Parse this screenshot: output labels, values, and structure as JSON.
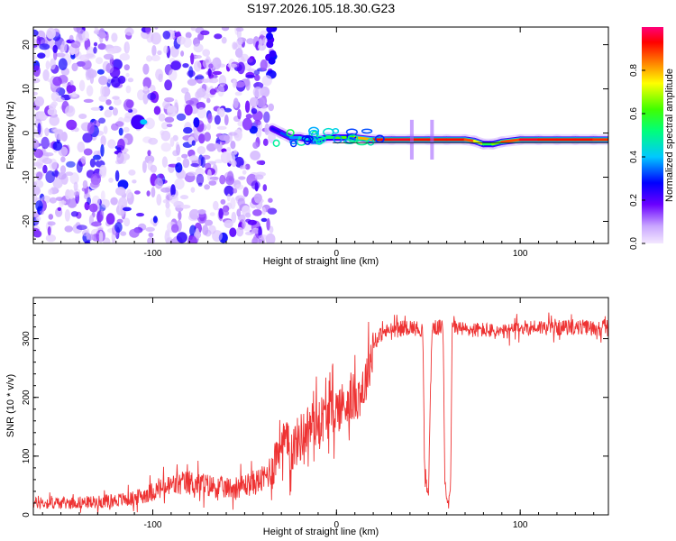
{
  "colors": {
    "spectrum_purple": "#8a2be2",
    "snr_line": "#ee3333",
    "frame": "#000000"
  },
  "chart_data": [
    {
      "type": "heatmap",
      "title": "S197.2026.105.18.30.G23",
      "xlabel": "Height of straight line (km)",
      "ylabel": "Frequency (Hz)",
      "xlim": [
        -165,
        148
      ],
      "ylim": [
        -25,
        24
      ],
      "xticks": [
        -100,
        0,
        100
      ],
      "xtick_labels": [
        "-100",
        "0",
        "100"
      ],
      "yticks": [
        -20,
        -10,
        0,
        10,
        20
      ],
      "ytick_labels": [
        "-20",
        "-10",
        "0",
        "10",
        "20"
      ],
      "noise_region_km": [
        -165,
        -35
      ],
      "signal_start_km": -33,
      "ridge": {
        "x": [
          -35,
          -30,
          -25,
          -20,
          -15,
          -10,
          -5,
          0,
          10,
          20,
          30,
          40,
          50,
          60,
          70,
          75,
          80,
          85,
          90,
          100,
          110,
          120,
          130,
          140,
          148
        ],
        "y": [
          1,
          0,
          -1,
          -1,
          -1.5,
          -1.5,
          -1,
          -1,
          -1,
          -1.5,
          -1.5,
          -1.5,
          -1.5,
          -1.5,
          -1.5,
          -1.8,
          -2.5,
          -2.5,
          -2,
          -1.5,
          -1.5,
          -1.5,
          -1.5,
          -1.5,
          -1.5
        ],
        "amplitude": [
          0.2,
          0.3,
          0.35,
          0.4,
          0.45,
          0.5,
          0.55,
          0.55,
          0.7,
          0.9,
          0.95,
          0.95,
          0.9,
          0.95,
          0.9,
          0.85,
          0.6,
          0.5,
          0.8,
          0.95,
          0.95,
          0.9,
          0.95,
          0.9,
          0.9
        ]
      },
      "colorbar": {
        "label": "Normalized spectral amplitude",
        "range": [
          0,
          1
        ],
        "ticks": [
          0.0,
          0.2,
          0.4,
          0.6,
          0.8
        ],
        "tick_labels": [
          "0.0",
          "0.2",
          "0.4",
          "0.6",
          "0.8"
        ]
      }
    },
    {
      "type": "line",
      "xlabel": "Height of straight line (km)",
      "ylabel": "SNR (10 * v/v)",
      "xlim": [
        -165,
        148
      ],
      "ylim": [
        0,
        370
      ],
      "xticks": [
        -100,
        0,
        100
      ],
      "xtick_labels": [
        "-100",
        "0",
        "100"
      ],
      "yticks": [
        0,
        100,
        200,
        300
      ],
      "ytick_labels": [
        "0",
        "100",
        "200",
        "300"
      ],
      "series": [
        {
          "name": "SNR",
          "x": [
            -165,
            -150,
            -130,
            -110,
            -100,
            -90,
            -80,
            -70,
            -60,
            -50,
            -40,
            -35,
            -30,
            -25,
            -20,
            -15,
            -10,
            -5,
            0,
            5,
            10,
            15,
            18,
            20,
            25,
            30,
            40,
            47,
            48,
            50,
            52,
            55,
            58,
            59,
            60,
            62,
            63,
            65,
            70,
            80,
            90,
            100,
            110,
            120,
            130,
            140,
            148
          ],
          "values": [
            20,
            20,
            22,
            28,
            40,
            50,
            55,
            50,
            45,
            50,
            60,
            80,
            130,
            110,
            130,
            150,
            160,
            170,
            180,
            190,
            200,
            215,
            260,
            290,
            310,
            315,
            320,
            315,
            60,
            35,
            320,
            318,
            320,
            60,
            30,
            30,
            320,
            320,
            315,
            315,
            310,
            318,
            320,
            318,
            320,
            318,
            320
          ]
        }
      ]
    }
  ]
}
